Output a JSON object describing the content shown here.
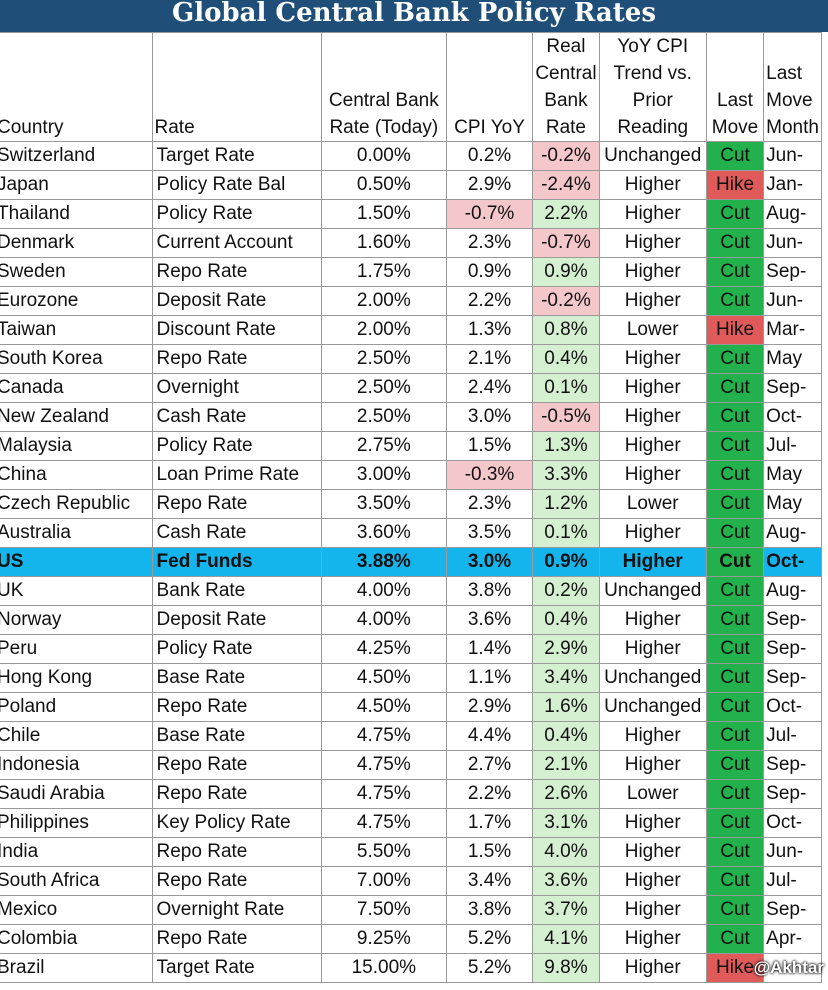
{
  "title": "Global Central Bank Policy Rates",
  "headers": {
    "country": "Country",
    "rate": "Rate",
    "cb_rate": [
      "Central Bank",
      "Rate (Today)"
    ],
    "cpi": "CPI YoY",
    "real": [
      "Real",
      "Central",
      "Bank",
      "Rate"
    ],
    "trend": [
      "YoY CPI",
      "Trend vs.",
      "Prior",
      "Reading"
    ],
    "last_move": [
      "Last",
      "Move"
    ],
    "last_move_date": [
      "Last",
      "Move",
      "Month"
    ]
  },
  "rows": [
    {
      "country": "Switzerland",
      "rate": "Target Rate",
      "cb": "0.00%",
      "cpi": "0.2%",
      "cpi_neg": false,
      "real": "-0.2%",
      "real_neg": true,
      "trend": "Unchanged",
      "move": "Cut",
      "date": "Jun-"
    },
    {
      "country": "Japan",
      "rate": "Policy Rate Bal",
      "cb": "0.50%",
      "cpi": "2.9%",
      "cpi_neg": false,
      "real": "-2.4%",
      "real_neg": true,
      "trend": "Higher",
      "move": "Hike",
      "date": "Jan-"
    },
    {
      "country": "Thailand",
      "rate": "Policy Rate",
      "cb": "1.50%",
      "cpi": "-0.7%",
      "cpi_neg": true,
      "real": "2.2%",
      "real_neg": false,
      "trend": "Higher",
      "move": "Cut",
      "date": "Aug-"
    },
    {
      "country": "Denmark",
      "rate": "Current Account",
      "cb": "1.60%",
      "cpi": "2.3%",
      "cpi_neg": false,
      "real": "-0.7%",
      "real_neg": true,
      "trend": "Higher",
      "move": "Cut",
      "date": "Jun-"
    },
    {
      "country": "Sweden",
      "rate": "Repo Rate",
      "cb": "1.75%",
      "cpi": "0.9%",
      "cpi_neg": false,
      "real": "0.9%",
      "real_neg": false,
      "trend": "Higher",
      "move": "Cut",
      "date": "Sep-"
    },
    {
      "country": "Eurozone",
      "rate": "Deposit Rate",
      "cb": "2.00%",
      "cpi": "2.2%",
      "cpi_neg": false,
      "real": "-0.2%",
      "real_neg": true,
      "trend": "Higher",
      "move": "Cut",
      "date": "Jun-"
    },
    {
      "country": "Taiwan",
      "rate": "Discount Rate",
      "cb": "2.00%",
      "cpi": "1.3%",
      "cpi_neg": false,
      "real": "0.8%",
      "real_neg": false,
      "trend": "Lower",
      "move": "Hike",
      "date": "Mar-"
    },
    {
      "country": "South Korea",
      "rate": "Repo Rate",
      "cb": "2.50%",
      "cpi": "2.1%",
      "cpi_neg": false,
      "real": "0.4%",
      "real_neg": false,
      "trend": "Higher",
      "move": "Cut",
      "date": "May"
    },
    {
      "country": "Canada",
      "rate": "Overnight",
      "cb": "2.50%",
      "cpi": "2.4%",
      "cpi_neg": false,
      "real": "0.1%",
      "real_neg": false,
      "trend": "Higher",
      "move": "Cut",
      "date": "Sep-"
    },
    {
      "country": "New Zealand",
      "rate": "Cash Rate",
      "cb": "2.50%",
      "cpi": "3.0%",
      "cpi_neg": false,
      "real": "-0.5%",
      "real_neg": true,
      "trend": "Higher",
      "move": "Cut",
      "date": "Oct-"
    },
    {
      "country": "Malaysia",
      "rate": "Policy Rate",
      "cb": "2.75%",
      "cpi": "1.5%",
      "cpi_neg": false,
      "real": "1.3%",
      "real_neg": false,
      "trend": "Higher",
      "move": "Cut",
      "date": "Jul-"
    },
    {
      "country": "China",
      "rate": "Loan Prime Rate",
      "cb": "3.00%",
      "cpi": "-0.3%",
      "cpi_neg": true,
      "real": "3.3%",
      "real_neg": false,
      "trend": "Higher",
      "move": "Cut",
      "date": "May"
    },
    {
      "country": "Czech Republic",
      "rate": "Repo Rate",
      "cb": "3.50%",
      "cpi": "2.3%",
      "cpi_neg": false,
      "real": "1.2%",
      "real_neg": false,
      "trend": "Lower",
      "move": "Cut",
      "date": "May"
    },
    {
      "country": "Australia",
      "rate": "Cash Rate",
      "cb": "3.60%",
      "cpi": "3.5%",
      "cpi_neg": false,
      "real": "0.1%",
      "real_neg": false,
      "trend": "Higher",
      "move": "Cut",
      "date": "Aug-"
    },
    {
      "country": "US",
      "rate": "Fed Funds",
      "cb": "3.88%",
      "cpi": "3.0%",
      "cpi_neg": false,
      "real": "0.9%",
      "real_neg": false,
      "trend": "Higher",
      "move": "Cut",
      "date": "Oct-",
      "highlight": true
    },
    {
      "country": "UK",
      "rate": "Bank Rate",
      "cb": "4.00%",
      "cpi": "3.8%",
      "cpi_neg": false,
      "real": "0.2%",
      "real_neg": false,
      "trend": "Unchanged",
      "move": "Cut",
      "date": "Aug-"
    },
    {
      "country": "Norway",
      "rate": "Deposit Rate",
      "cb": "4.00%",
      "cpi": "3.6%",
      "cpi_neg": false,
      "real": "0.4%",
      "real_neg": false,
      "trend": "Higher",
      "move": "Cut",
      "date": "Sep-"
    },
    {
      "country": "Peru",
      "rate": "Policy Rate",
      "cb": "4.25%",
      "cpi": "1.4%",
      "cpi_neg": false,
      "real": "2.9%",
      "real_neg": false,
      "trend": "Higher",
      "move": "Cut",
      "date": "Sep-"
    },
    {
      "country": "Hong Kong",
      "rate": "Base Rate",
      "cb": "4.50%",
      "cpi": "1.1%",
      "cpi_neg": false,
      "real": "3.4%",
      "real_neg": false,
      "trend": "Unchanged",
      "move": "Cut",
      "date": "Sep-"
    },
    {
      "country": "Poland",
      "rate": "Repo Rate",
      "cb": "4.50%",
      "cpi": "2.9%",
      "cpi_neg": false,
      "real": "1.6%",
      "real_neg": false,
      "trend": "Unchanged",
      "move": "Cut",
      "date": "Oct-"
    },
    {
      "country": "Chile",
      "rate": "Base Rate",
      "cb": "4.75%",
      "cpi": "4.4%",
      "cpi_neg": false,
      "real": "0.4%",
      "real_neg": false,
      "trend": "Higher",
      "move": "Cut",
      "date": "Jul-"
    },
    {
      "country": "Indonesia",
      "rate": "Repo Rate",
      "cb": "4.75%",
      "cpi": "2.7%",
      "cpi_neg": false,
      "real": "2.1%",
      "real_neg": false,
      "trend": "Higher",
      "move": "Cut",
      "date": "Sep-"
    },
    {
      "country": "Saudi Arabia",
      "rate": "Repo Rate",
      "cb": "4.75%",
      "cpi": "2.2%",
      "cpi_neg": false,
      "real": "2.6%",
      "real_neg": false,
      "trend": "Lower",
      "move": "Cut",
      "date": "Sep-"
    },
    {
      "country": "Philippines",
      "rate": "Key Policy Rate",
      "cb": "4.75%",
      "cpi": "1.7%",
      "cpi_neg": false,
      "real": "3.1%",
      "real_neg": false,
      "trend": "Higher",
      "move": "Cut",
      "date": "Oct-"
    },
    {
      "country": "India",
      "rate": "Repo Rate",
      "cb": "5.50%",
      "cpi": "1.5%",
      "cpi_neg": false,
      "real": "4.0%",
      "real_neg": false,
      "trend": "Higher",
      "move": "Cut",
      "date": "Jun-"
    },
    {
      "country": "South Africa",
      "rate": "Repo Rate",
      "cb": "7.00%",
      "cpi": "3.4%",
      "cpi_neg": false,
      "real": "3.6%",
      "real_neg": false,
      "trend": "Higher",
      "move": "Cut",
      "date": "Jul-"
    },
    {
      "country": "Mexico",
      "rate": "Overnight Rate",
      "cb": "7.50%",
      "cpi": "3.8%",
      "cpi_neg": false,
      "real": "3.7%",
      "real_neg": false,
      "trend": "Higher",
      "move": "Cut",
      "date": "Sep-"
    },
    {
      "country": "Colombia",
      "rate": "Repo Rate",
      "cb": "9.25%",
      "cpi": "5.2%",
      "cpi_neg": false,
      "real": "4.1%",
      "real_neg": false,
      "trend": "Higher",
      "move": "Cut",
      "date": "Apr-"
    },
    {
      "country": "Brazil",
      "rate": "Target Rate",
      "cb": "15.00%",
      "cpi": "5.2%",
      "cpi_neg": false,
      "real": "9.8%",
      "real_neg": false,
      "trend": "Higher",
      "move": "Hike",
      "date": ""
    }
  ],
  "watermark": "@Akhtar"
}
